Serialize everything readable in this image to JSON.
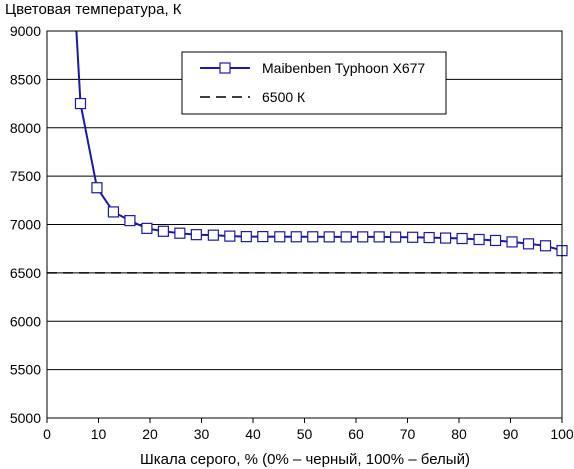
{
  "chart_data": {
    "type": "line",
    "ylabel": "Цветовая температура, К",
    "xlabel": "Шкала серого, % (0% – черный, 100% – белый)",
    "xlim": [
      0,
      100
    ],
    "ylim": [
      5000,
      9000
    ],
    "xticks": [
      0,
      10,
      20,
      30,
      40,
      50,
      60,
      70,
      80,
      90,
      100
    ],
    "yticks": [
      5000,
      5500,
      6000,
      6500,
      7000,
      7500,
      8000,
      8500,
      9000
    ],
    "grid": "horizontal",
    "legend_position": "top-right",
    "series": [
      {
        "name": "Maibenben Typhoon X677",
        "color": "#1a1aa8",
        "marker": "square",
        "curve_start": {
          "x": 5.7,
          "y": 9000
        },
        "x": [
          6.5,
          9.7,
          12.9,
          16.1,
          19.4,
          22.6,
          25.8,
          29.0,
          32.3,
          35.5,
          38.7,
          41.9,
          45.2,
          48.4,
          51.6,
          54.8,
          58.1,
          61.3,
          64.5,
          67.7,
          71.0,
          74.2,
          77.4,
          80.6,
          83.9,
          87.1,
          90.3,
          93.5,
          96.8,
          100
        ],
        "values": [
          8250,
          7380,
          7130,
          7040,
          6960,
          6930,
          6910,
          6895,
          6890,
          6880,
          6875,
          6875,
          6873,
          6873,
          6873,
          6872,
          6872,
          6872,
          6872,
          6870,
          6868,
          6865,
          6860,
          6855,
          6845,
          6835,
          6820,
          6800,
          6780,
          6730
        ]
      },
      {
        "name": "6500 К",
        "color": "#000000",
        "style": "dashed",
        "x": [
          0,
          100
        ],
        "values": [
          6500,
          6500
        ]
      }
    ]
  }
}
